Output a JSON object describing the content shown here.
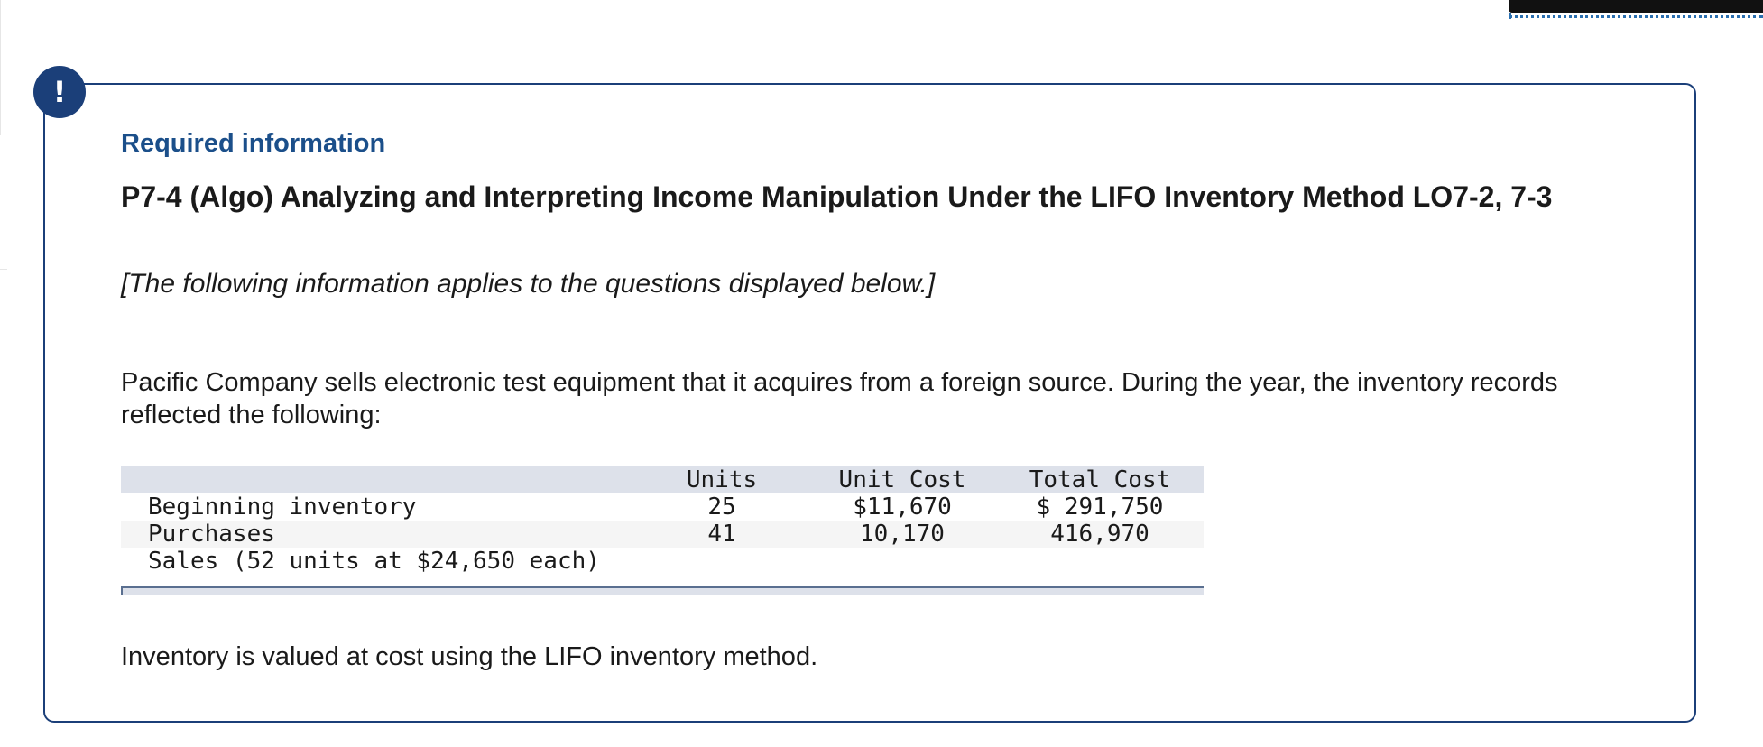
{
  "alert": {
    "icon": "exclamation-icon",
    "symbol": "!",
    "color": "#1b3f79"
  },
  "card": {
    "heading": "Required information",
    "title": "P7-4 (Algo) Analyzing and Interpreting Income Manipulation Under the LIFO Inventory Method LO7-2, 7-3",
    "instruction": "[The following information applies to the questions displayed below.]",
    "description": "Pacific Company sells electronic test equipment that it acquires from a foreign source. During the year, the inventory records reflected the following:",
    "closing": "Inventory is valued at cost using the LIFO inventory method."
  },
  "table": {
    "headers": {
      "units": "Units",
      "unit_cost": "Unit Cost",
      "total_cost": "Total Cost"
    },
    "rows": [
      {
        "label": "Beginning inventory",
        "units": "25",
        "unit_cost": "$11,670",
        "total_cost": "$ 291,750"
      },
      {
        "label": "Purchases",
        "units": "41",
        "unit_cost": "10,170",
        "total_cost": "416,970"
      },
      {
        "label": "Sales (52 units at $24,650 each)",
        "units": "",
        "unit_cost": "",
        "total_cost": ""
      }
    ]
  },
  "colors": {
    "accent": "#1b3f79",
    "heading": "#1b4f8a",
    "table_header_bg": "#dde1ea"
  }
}
